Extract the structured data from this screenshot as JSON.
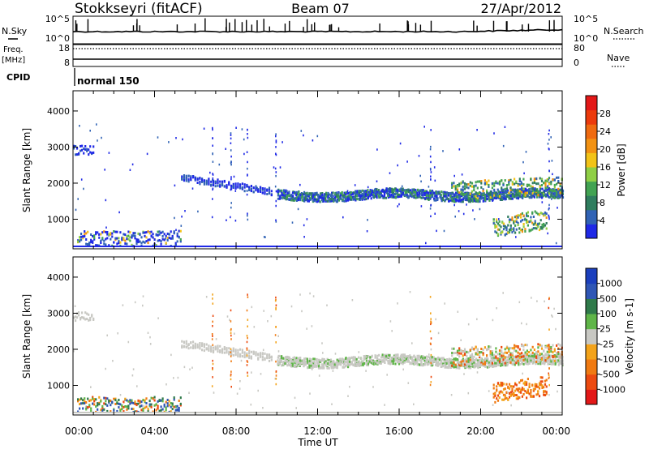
{
  "header": {
    "station": "Stokkseyri (fitACF)",
    "beam": "Beam 07",
    "date": "27/Apr/2012"
  },
  "strip": {
    "nsky_label": "N.Sky",
    "nsearch_label": "N.Search",
    "freq_label_1": "Freq.",
    "freq_label_2": "[MHz]",
    "nave_label": "Nave",
    "cpid_label": "CPID",
    "cpid_value": "normal 150",
    "noise_ticks": [
      "10^5",
      "10^0"
    ],
    "freq_ticks": [
      "18",
      "8"
    ],
    "nave_ticks": [
      "80",
      "0"
    ]
  },
  "chart_data": [
    {
      "type": "heatmap",
      "title": "",
      "ylabel": "Slant Range [km]",
      "xlabel": "",
      "xlim": [
        "00:00",
        "24:00"
      ],
      "ylim": [
        180,
        4560
      ],
      "y_ticks": [
        "1000",
        "2000",
        "3000",
        "4000"
      ],
      "colorbar": {
        "label": "Power [dB]",
        "ticks": [
          "4",
          "8",
          "12",
          "16",
          "20",
          "24",
          "28"
        ],
        "colors": [
          "#1f29e6",
          "#3163b5",
          "#2f7d5e",
          "#42a352",
          "#8fcf45",
          "#f2c318",
          "#f29213",
          "#ef6a10",
          "#ec3a0c",
          "#e31818"
        ]
      },
      "features": [
        {
          "name": "main band",
          "start_hour": 10.0,
          "end_hour": 24.0,
          "range_km": [
            1450,
            1800
          ]
        },
        {
          "name": "echo band",
          "start_hour": 6.2,
          "end_hour": 9.8,
          "range_km": [
            1650,
            1950
          ]
        },
        {
          "name": "lower band",
          "start_hour": 20.6,
          "end_hour": 23.2,
          "range_km": [
            500,
            1050
          ]
        },
        {
          "name": "near-range echoes",
          "start_hour": 0.2,
          "end_hour": 5.3,
          "range_km": [
            250,
            700
          ]
        }
      ]
    },
    {
      "type": "heatmap",
      "title": "",
      "ylabel": "Slant Range [km]",
      "xlabel": "Time UT",
      "xlim": [
        "00:00",
        "24:00"
      ],
      "ylim": [
        180,
        4560
      ],
      "x_ticks": [
        "00:00",
        "04:00",
        "08:00",
        "12:00",
        "16:00",
        "20:00",
        "00:00"
      ],
      "y_ticks": [
        "1000",
        "2000",
        "3000",
        "4000"
      ],
      "colorbar": {
        "label": "Velocity [m s-1]",
        "ticks": [
          "1000",
          "500",
          "100",
          "25",
          "-25",
          "-100",
          "-500",
          "-1000"
        ],
        "colors": [
          "#1b3fbd",
          "#2f56b5",
          "#2f7a4a",
          "#5fb548",
          "#c8c8c3",
          "#f3a31a",
          "#f07a12",
          "#ec4a10",
          "#e31818"
        ]
      },
      "features": [
        {
          "name": "ground scatter band",
          "start_hour": 6.0,
          "end_hour": 24.0,
          "range_km": [
            1450,
            1950
          ],
          "velocity_class": "25 to -25"
        },
        {
          "name": "receding echoes",
          "start_hour": 20.6,
          "end_hour": 23.2,
          "range_km": [
            500,
            1050
          ],
          "velocity_class": "-100 to -500"
        },
        {
          "name": "near-range approaching",
          "start_hour": 0.2,
          "end_hour": 5.3,
          "range_km": [
            250,
            700
          ],
          "velocity_class": "100 to 500"
        }
      ]
    }
  ]
}
